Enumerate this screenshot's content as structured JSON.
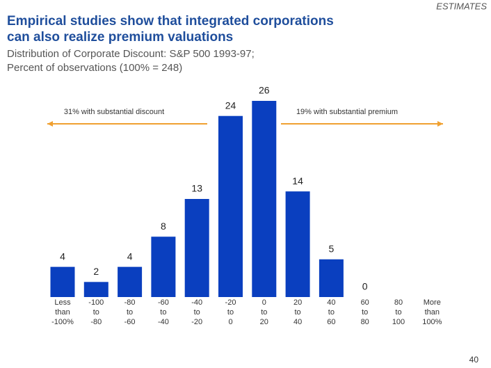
{
  "header": {
    "tag": "ESTIMATES",
    "title": [
      "Empirical studies show that integrated corporations",
      "can also realize premium valuations"
    ]
  },
  "chart_data": {
    "type": "bar",
    "subtitle": [
      "Distribution of Corporate Discount: S&P 500 1993-97;",
      "Percent of observations (100% = 248)"
    ],
    "categories": [
      [
        "Less",
        "than",
        "-100%"
      ],
      [
        "-100",
        "to",
        "-80"
      ],
      [
        "-80",
        "to",
        "-60"
      ],
      [
        "-60",
        "to",
        "-40"
      ],
      [
        "-40",
        "to",
        "-20"
      ],
      [
        "-20",
        "to",
        "0"
      ],
      [
        "0",
        "to",
        "20"
      ],
      [
        "20",
        "to",
        "40"
      ],
      [
        "40",
        "to",
        "60"
      ],
      [
        "60",
        "to",
        "80"
      ],
      [
        "80",
        "to",
        "100"
      ],
      [
        "More",
        "than",
        "100%"
      ]
    ],
    "values": [
      4,
      2,
      4,
      8,
      13,
      24,
      26,
      14,
      5,
      0,
      null,
      null
    ],
    "color": "#0a3fbf",
    "annotations": [
      {
        "text": "31% with substantial discount",
        "direction": "left"
      },
      {
        "text": "19% with substantial premium",
        "direction": "right"
      }
    ],
    "annotation_color": "#f0a030"
  },
  "page_number": 40
}
